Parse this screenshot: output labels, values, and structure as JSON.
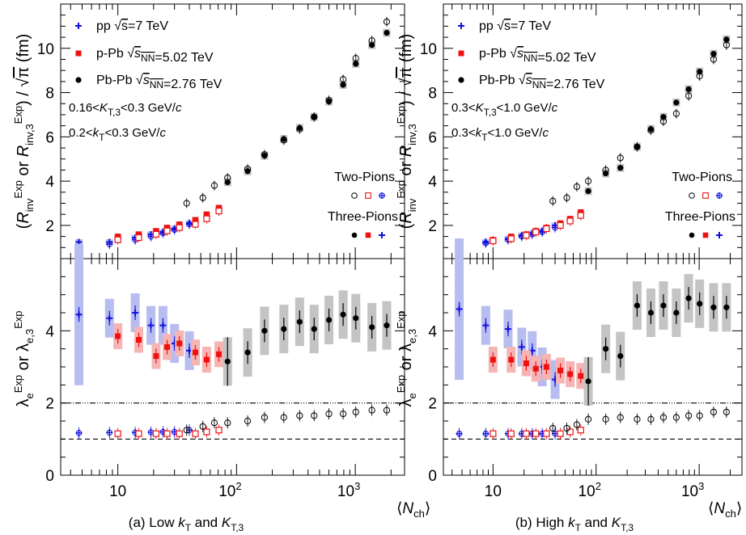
{
  "chart_data": [
    {
      "type": "scatter",
      "caption": "(a)  Low kT and KT,3",
      "upper": {
        "ylabel": "(R_inv^Exp or R_inv,3^Exp) / √π (fm)",
        "ylim": [
          0.5,
          12.0
        ],
        "yticks": [
          2,
          4,
          6,
          8,
          10
        ],
        "grid": false,
        "annotations": [
          "0.16<K_T,3<0.3 GeV/c",
          "0.2<k_T<0.3 GeV/c"
        ],
        "legend": [
          {
            "system": "pp",
            "energy": "√s=7 TeV",
            "color": "#1010dd",
            "marker": "cross"
          },
          {
            "system": "p-Pb",
            "energy": "√s_NN=5.02 TeV",
            "color": "#ee1111",
            "marker": "square"
          },
          {
            "system": "Pb-Pb",
            "energy": "√s_NN=2.76 TeV",
            "color": "#000000",
            "marker": "circle"
          }
        ],
        "group_labels": [
          "Two-Pions",
          "Three-Pions"
        ],
        "series": [
          {
            "name": "pp",
            "kind": "three",
            "x": [
              4.7,
              8.5,
              14,
              19,
              24,
              30,
              40
            ],
            "y": [
              1.25,
              1.25,
              1.45,
              1.6,
              1.7,
              1.85,
              2.1
            ]
          },
          {
            "name": "pp",
            "kind": "two",
            "x": [
              4.7,
              8.5,
              14,
              19,
              24,
              30,
              40
            ],
            "y": [
              0.9,
              1.15,
              1.35,
              1.5,
              1.65,
              1.8,
              2.05
            ]
          },
          {
            "name": "p-Pb",
            "kind": "three",
            "x": [
              10,
              15,
              21,
              26,
              33,
              45,
              56,
              71
            ],
            "y": [
              1.5,
              1.6,
              1.75,
              1.9,
              2.05,
              2.25,
              2.5,
              2.8
            ]
          },
          {
            "name": "p-Pb",
            "kind": "two",
            "x": [
              10,
              15,
              21,
              26,
              33,
              45,
              56,
              71
            ],
            "y": [
              1.35,
              1.45,
              1.6,
              1.75,
              1.9,
              2.05,
              2.3,
              2.65
            ]
          },
          {
            "name": "Pb-Pb",
            "kind": "three",
            "x": [
              84,
              124,
              172,
              250,
              340,
              450,
              600,
              790,
              1010,
              1380,
              1840
            ],
            "y": [
              3.95,
              4.45,
              5.15,
              5.9,
              6.4,
              6.9,
              7.6,
              8.35,
              9.3,
              10.15,
              10.7
            ]
          },
          {
            "name": "Pb-Pb",
            "kind": "two",
            "x": [
              38,
              52,
              65,
              84,
              124,
              172,
              250,
              340,
              450,
              600,
              790,
              1010,
              1380,
              1840
            ],
            "y": [
              3.0,
              3.25,
              3.8,
              4.15,
              4.55,
              5.2,
              5.85,
              6.35,
              6.9,
              7.65,
              8.6,
              9.55,
              10.35,
              11.2
            ]
          }
        ]
      },
      "lower": {
        "ylabel": "λ_e^Exp or λ_e,3^Exp",
        "ylim": [
          0,
          6.0
        ],
        "yticks": [
          0,
          2,
          4
        ],
        "reference_lines": [
          2.0,
          1.0
        ],
        "series": [
          {
            "name": "pp",
            "kind": "three",
            "x": [
              4.7,
              8.5,
              14,
              19,
              24,
              30,
              40
            ],
            "y": [
              4.45,
              4.35,
              4.5,
              4.15,
              4.15,
              3.65,
              3.45
            ]
          },
          {
            "name": "pp",
            "kind": "two",
            "x": [
              4.7,
              8.5,
              14,
              19,
              24,
              30,
              40
            ],
            "y": [
              1.17,
              1.18,
              1.18,
              1.19,
              1.2,
              1.2,
              1.25
            ]
          },
          {
            "name": "p-Pb",
            "kind": "three",
            "x": [
              10,
              15,
              21,
              26,
              33,
              45,
              56,
              71
            ],
            "y": [
              3.85,
              3.75,
              3.3,
              3.55,
              3.65,
              3.4,
              3.2,
              3.35
            ]
          },
          {
            "name": "p-Pb",
            "kind": "two",
            "x": [
              10,
              15,
              21,
              26,
              33,
              45,
              56,
              71
            ],
            "y": [
              1.15,
              1.15,
              1.15,
              1.15,
              1.15,
              1.15,
              1.2,
              1.25
            ]
          },
          {
            "name": "Pb-Pb",
            "kind": "three",
            "x": [
              84,
              124,
              172,
              250,
              340,
              450,
              600,
              790,
              1010,
              1380,
              1840
            ],
            "y": [
              3.15,
              3.4,
              4.0,
              4.05,
              4.25,
              4.05,
              4.3,
              4.45,
              4.35,
              4.1,
              4.15
            ]
          },
          {
            "name": "Pb-Pb",
            "kind": "two",
            "x": [
              38,
              52,
              65,
              84,
              124,
              172,
              250,
              340,
              450,
              600,
              790,
              1010,
              1380,
              1840
            ],
            "y": [
              1.25,
              1.35,
              1.45,
              1.45,
              1.5,
              1.6,
              1.6,
              1.65,
              1.65,
              1.7,
              1.7,
              1.75,
              1.8,
              1.8
            ]
          }
        ]
      },
      "xaxis": {
        "label": "⟨N_ch⟩",
        "scale": "log",
        "xlim": [
          3.3,
          2600
        ],
        "tick_labels": [
          "10",
          "10^2",
          "10^3"
        ]
      }
    },
    {
      "type": "scatter",
      "caption": "(b)  High kT and KT,3",
      "upper": {
        "ylabel": "(R_inv^Exp or R_inv,3^Exp) / √π (fm)",
        "ylim": [
          0.5,
          12.0
        ],
        "yticks": [
          2,
          4,
          6,
          8,
          10
        ],
        "grid": false,
        "annotations": [
          "0.3<K_T,3<1.0 GeV/c",
          "0.3<k_T<1.0 GeV/c"
        ],
        "legend": [
          {
            "system": "pp",
            "energy": "√s=7 TeV",
            "color": "#1010dd",
            "marker": "cross"
          },
          {
            "system": "p-Pb",
            "energy": "√s_NN=5.02 TeV",
            "color": "#ee1111",
            "marker": "square"
          },
          {
            "system": "Pb-Pb",
            "energy": "√s_NN=2.76 TeV",
            "color": "#000000",
            "marker": "circle"
          }
        ],
        "group_labels": [
          "Two-Pions",
          "Three-Pions"
        ],
        "series": [
          {
            "name": "pp",
            "kind": "three",
            "x": [
              4.7,
              8.5,
              14,
              19,
              24,
              30,
              40
            ],
            "y": [
              1.05,
              1.25,
              1.4,
              1.55,
              1.65,
              1.75,
              2.0
            ]
          },
          {
            "name": "pp",
            "kind": "two",
            "x": [
              4.7,
              8.5,
              14,
              19,
              24,
              30,
              40
            ],
            "y": [
              1.0,
              1.2,
              1.35,
              1.5,
              1.6,
              1.7,
              1.9
            ]
          },
          {
            "name": "p-Pb",
            "kind": "three",
            "x": [
              10,
              15,
              21,
              26,
              33,
              45,
              56,
              71
            ],
            "y": [
              1.35,
              1.5,
              1.6,
              1.75,
              1.9,
              2.1,
              2.3,
              2.6
            ]
          },
          {
            "name": "p-Pb",
            "kind": "two",
            "x": [
              10,
              15,
              21,
              26,
              33,
              45,
              56,
              71
            ],
            "y": [
              1.3,
              1.4,
              1.55,
              1.7,
              1.85,
              2.0,
              2.2,
              2.45
            ]
          },
          {
            "name": "Pb-Pb",
            "kind": "three",
            "x": [
              84,
              124,
              172,
              250,
              340,
              450,
              600,
              790,
              1010,
              1380,
              1840
            ],
            "y": [
              3.55,
              4.35,
              4.6,
              5.55,
              6.35,
              6.9,
              7.55,
              8.15,
              8.95,
              9.75,
              10.4
            ]
          },
          {
            "name": "Pb-Pb",
            "kind": "two",
            "x": [
              38,
              52,
              65,
              84,
              124,
              172,
              250,
              340,
              450,
              600,
              790,
              1010,
              1380,
              1840
            ],
            "y": [
              3.1,
              3.25,
              3.75,
              4.0,
              4.5,
              5.05,
              5.55,
              6.3,
              6.7,
              7.05,
              7.85,
              8.75,
              9.5,
              10.15
            ]
          }
        ]
      },
      "lower": {
        "ylabel": "λ_e^Exp or λ_e,3^Exp",
        "ylim": [
          0,
          6.0
        ],
        "yticks": [
          0,
          2,
          4
        ],
        "reference_lines": [
          2.0,
          1.0
        ],
        "series": [
          {
            "name": "pp",
            "kind": "three",
            "x": [
              4.7,
              8.5,
              14,
              19,
              24,
              30,
              40
            ],
            "y": [
              4.6,
              4.15,
              4.05,
              3.55,
              3.45,
              3.0,
              2.65
            ]
          },
          {
            "name": "pp",
            "kind": "two",
            "x": [
              4.7,
              8.5,
              14,
              19,
              24,
              30,
              40
            ],
            "y": [
              1.15,
              1.15,
              1.15,
              1.15,
              1.15,
              1.15,
              1.15
            ]
          },
          {
            "name": "p-Pb",
            "kind": "three",
            "x": [
              10,
              15,
              21,
              26,
              33,
              45,
              56,
              71
            ],
            "y": [
              3.2,
              3.2,
              3.1,
              2.95,
              3.0,
              2.9,
              2.8,
              2.75
            ]
          },
          {
            "name": "p-Pb",
            "kind": "two",
            "x": [
              10,
              15,
              21,
              26,
              33,
              45,
              56,
              71
            ],
            "y": [
              1.15,
              1.15,
              1.15,
              1.15,
              1.15,
              1.15,
              1.2,
              1.25
            ]
          },
          {
            "name": "Pb-Pb",
            "kind": "three",
            "x": [
              84,
              124,
              172,
              250,
              340,
              450,
              600,
              790,
              1010,
              1380,
              1840
            ],
            "y": [
              2.6,
              3.5,
              3.3,
              4.7,
              4.5,
              4.7,
              4.5,
              4.9,
              4.75,
              4.65,
              4.65
            ]
          },
          {
            "name": "Pb-Pb",
            "kind": "two",
            "x": [
              38,
              52,
              65,
              84,
              124,
              172,
              250,
              340,
              450,
              600,
              790,
              1010,
              1380,
              1840
            ],
            "y": [
              1.3,
              1.3,
              1.4,
              1.55,
              1.55,
              1.6,
              1.55,
              1.55,
              1.6,
              1.6,
              1.65,
              1.65,
              1.75,
              1.75
            ]
          }
        ]
      },
      "xaxis": {
        "label": "⟨N_ch⟩",
        "scale": "log",
        "xlim": [
          3.3,
          2600
        ],
        "tick_labels": [
          "10",
          "10^2",
          "10^3"
        ]
      }
    }
  ]
}
